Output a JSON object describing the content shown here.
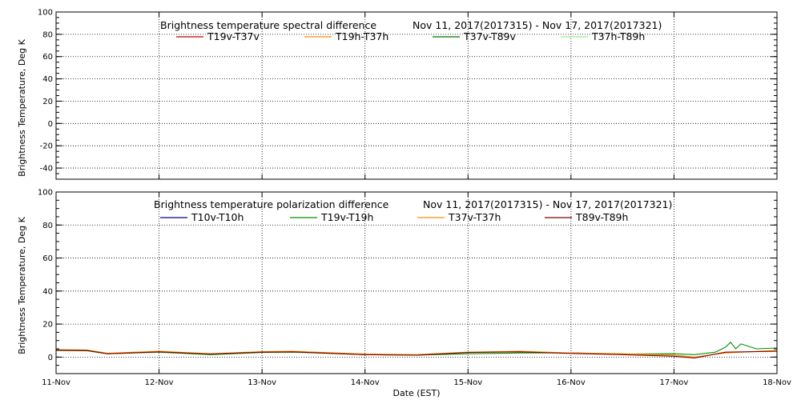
{
  "chart_data": [
    {
      "type": "line",
      "title": "Brightness temperature spectral difference",
      "date_range": "Nov 11, 2017(2017315) - Nov 17, 2017(2017321)",
      "ylabel": "Brightness Temperature, Deg K",
      "xlabel": "",
      "ylim": [
        -50,
        100
      ],
      "yticks": [
        -40,
        -20,
        0,
        20,
        40,
        60,
        80,
        100
      ],
      "xlim": [
        0,
        7
      ],
      "xtick_labels": [],
      "grid": true,
      "legend_placement": "top",
      "series": [
        {
          "name": "T19v-T37v",
          "color": "#c00000",
          "x": [],
          "y": []
        },
        {
          "name": "T19h-T37h",
          "color": "#ff8c00",
          "x": [],
          "y": []
        },
        {
          "name": "T37v-T89v",
          "color": "#007000",
          "x": [],
          "y": []
        },
        {
          "name": "T37h-T89h",
          "color": "#90ee90",
          "x": [],
          "y": []
        }
      ]
    },
    {
      "type": "line",
      "title": "Brightness temperature polarization difference",
      "date_range": "Nov 11, 2017(2017315) - Nov 17, 2017(2017321)",
      "ylabel": "Brightness Temperature, Deg K",
      "xlabel": "Date (EST)",
      "ylim": [
        -10,
        100
      ],
      "yticks": [
        0,
        20,
        40,
        60,
        80,
        100
      ],
      "xlim": [
        0,
        7
      ],
      "xtick_labels": [
        "11-Nov",
        "12-Nov",
        "13-Nov",
        "14-Nov",
        "15-Nov",
        "16-Nov",
        "17-Nov",
        "18-Nov"
      ],
      "grid": true,
      "legend_placement": "top",
      "series": [
        {
          "name": "T10v-T10h",
          "color": "#000090",
          "x": [],
          "y": []
        },
        {
          "name": "T19v-T19h",
          "color": "#009000",
          "x": [
            0,
            0.3,
            0.5,
            1.0,
            1.5,
            2.0,
            2.3,
            3.0,
            3.5,
            4.0,
            4.5,
            5.0,
            5.5,
            6.0,
            6.2,
            6.4,
            6.5,
            6.55,
            6.6,
            6.65,
            6.8,
            7.0
          ],
          "y": [
            4,
            3.8,
            2,
            3,
            1.5,
            2.8,
            3,
            1.5,
            1.2,
            2,
            2.5,
            2.6,
            1.8,
            2,
            1.5,
            3,
            6,
            9,
            5,
            8,
            5,
            5.5
          ]
        },
        {
          "name": "T37v-T37h",
          "color": "#ff8c00",
          "x": [
            0,
            0.3,
            0.5,
            1.0,
            1.5,
            2.0,
            2.3,
            3.0,
            3.5,
            4.0,
            4.5,
            5.0,
            5.5,
            6.0,
            6.2,
            6.5,
            7.0
          ],
          "y": [
            4.5,
            4.3,
            2.3,
            3.5,
            2,
            3.3,
            3.5,
            1.8,
            1.5,
            3,
            3.5,
            2.5,
            2,
            1.2,
            0,
            2.5,
            4
          ]
        },
        {
          "name": "T89v-T89h",
          "color": "#800000",
          "x": [
            0,
            0.3,
            0.5,
            1.0,
            1.5,
            2.0,
            2.3,
            3.0,
            3.5,
            4.0,
            4.5,
            5.0,
            5.5,
            6.0,
            6.2,
            6.5,
            7.0
          ],
          "y": [
            4.2,
            4,
            2,
            3.2,
            1.8,
            3,
            3.2,
            1.5,
            1.2,
            2.8,
            3.2,
            2.2,
            1.5,
            0.5,
            -0.5,
            3,
            3.5
          ]
        }
      ]
    }
  ]
}
